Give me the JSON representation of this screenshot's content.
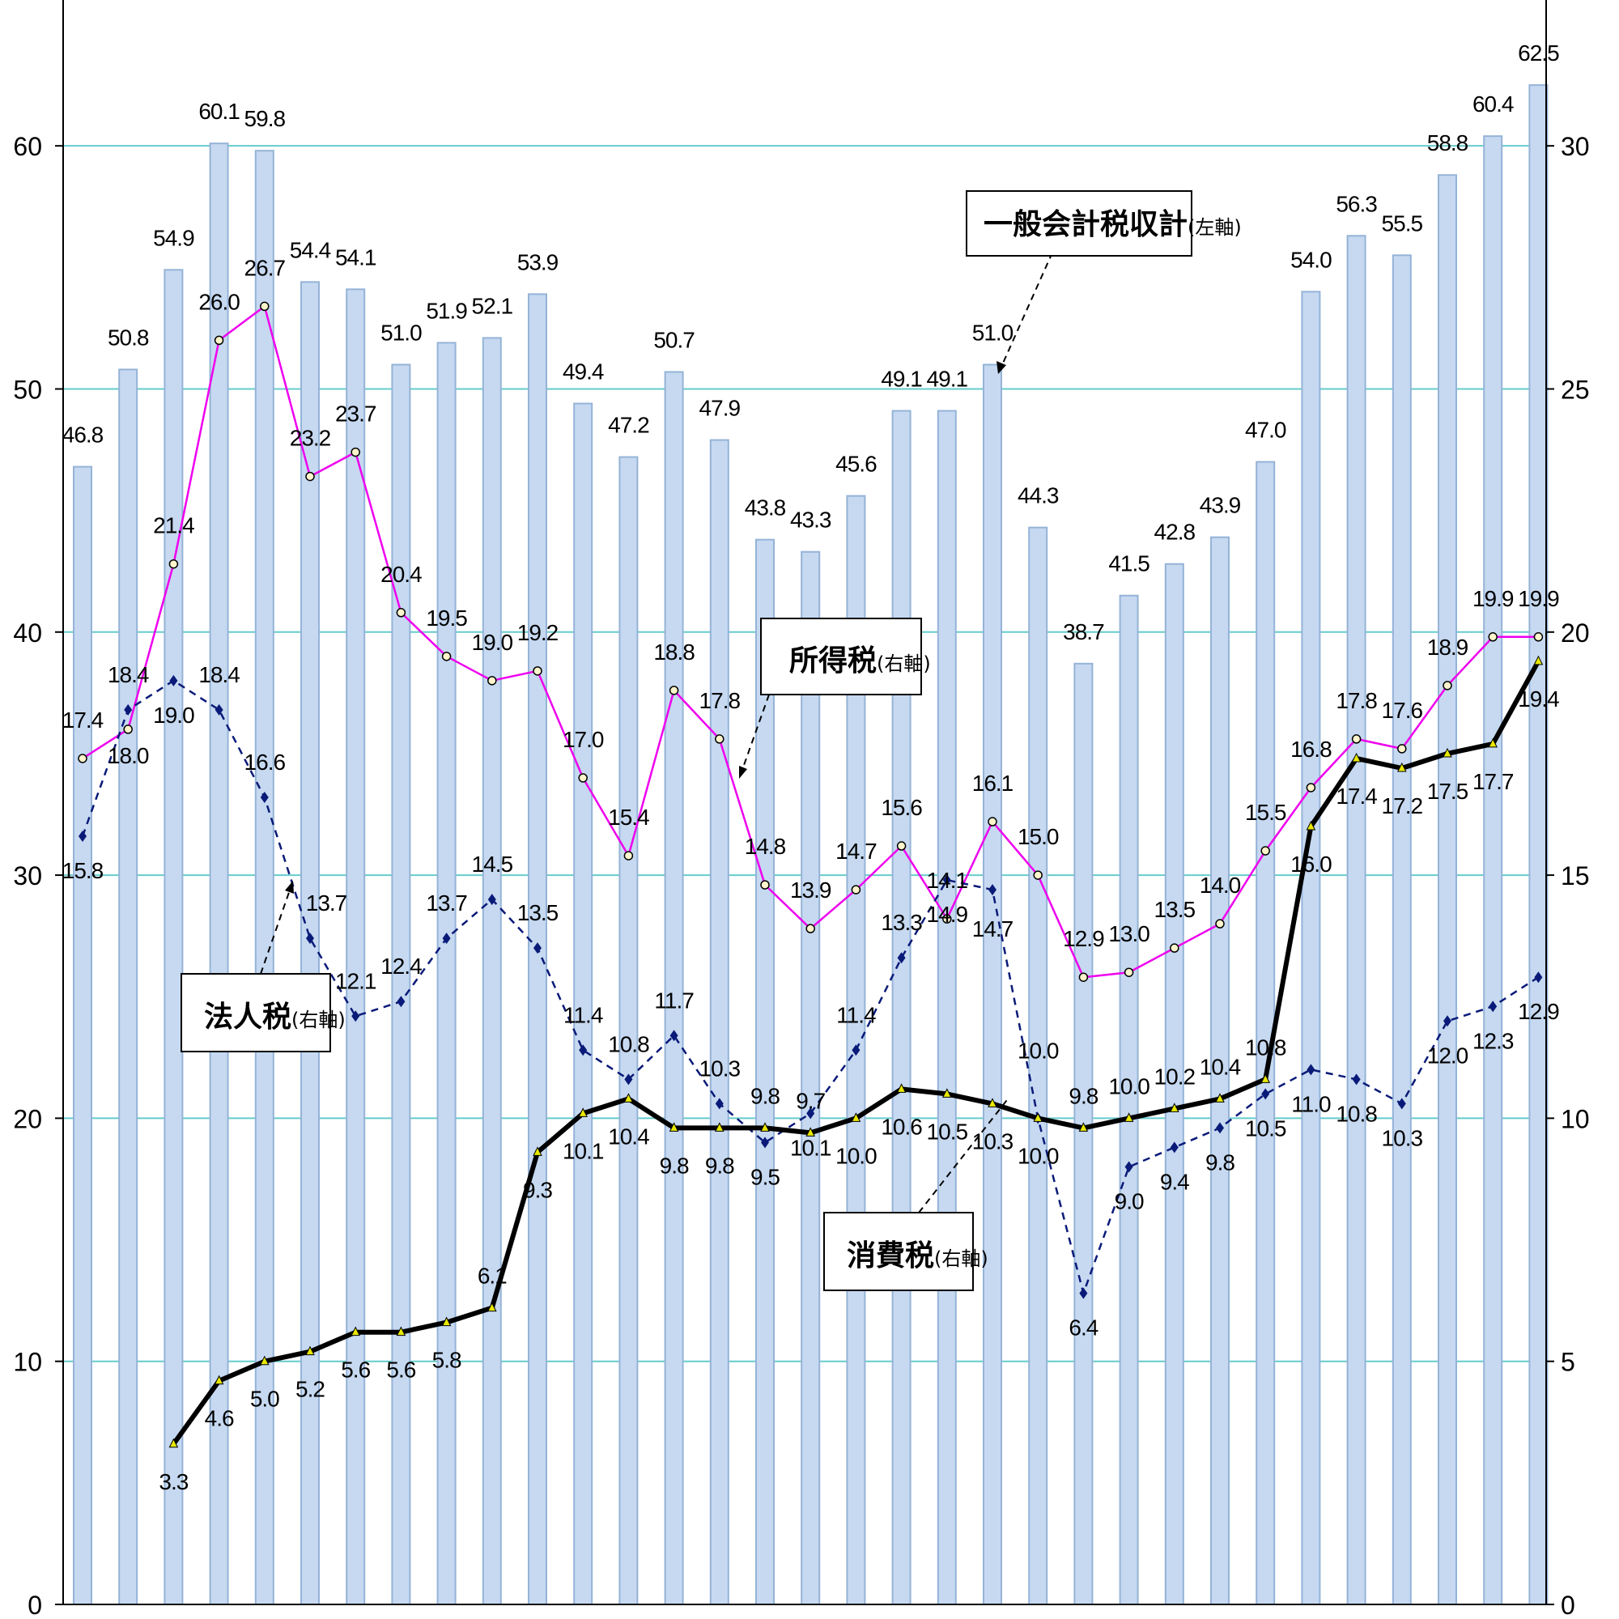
{
  "chart_data": {
    "type": "bar",
    "title": "",
    "xlabel": "",
    "ylabel": "",
    "y_left": {
      "range": [
        0,
        66
      ],
      "ticks": [
        "0",
        "10",
        "20",
        "30",
        "40",
        "50",
        "60"
      ]
    },
    "y_right": {
      "range": [
        0,
        33
      ],
      "ticks": [
        "0",
        "5",
        "10",
        "15",
        "20",
        "25",
        "30"
      ]
    },
    "gridlines": true,
    "colors": {
      "bar_fill": "#c6d9f1",
      "bar_stroke": "#95b3d7",
      "grid": "#66cccc",
      "income_tax": "#ee00ee",
      "corporate_tax": "#0a1a78",
      "consumption_tax": "#000000"
    },
    "series": [
      {
        "name": "一般会計税収計",
        "axis": "left",
        "kind": "bar",
        "values": [
          46.8,
          50.8,
          54.9,
          60.1,
          59.8,
          54.4,
          54.1,
          51.0,
          51.9,
          52.1,
          53.9,
          49.4,
          47.2,
          50.7,
          47.9,
          43.8,
          43.3,
          45.6,
          49.1,
          49.1,
          51.0,
          44.3,
          38.7,
          41.5,
          42.8,
          43.9,
          47.0,
          54.0,
          56.3,
          55.5,
          58.8,
          60.4,
          62.5
        ],
        "labels": [
          "46.8",
          "50.8",
          "54.9",
          "60.1",
          "59.8",
          "54.4",
          "54.1",
          "51.0",
          "51.9",
          "52.1",
          "53.9",
          "49.4",
          "47.2",
          "50.7",
          "47.9",
          "43.8",
          "43.3",
          "45.6",
          "49.1",
          "49.1",
          "51.0",
          "44.3",
          "38.7",
          "41.5",
          "42.8",
          "43.9",
          "47.0",
          "54.0",
          "56.3",
          "55.5",
          "58.8",
          "60.4",
          "62.5"
        ]
      },
      {
        "name": "所得税",
        "axis": "right",
        "kind": "line",
        "values": [
          17.4,
          18.0,
          21.4,
          26.0,
          26.7,
          23.2,
          23.7,
          20.4,
          19.5,
          19.0,
          19.2,
          17.0,
          15.4,
          18.8,
          17.8,
          14.8,
          13.9,
          14.7,
          15.6,
          14.1,
          16.1,
          15.0,
          12.9,
          13.0,
          13.5,
          14.0,
          15.5,
          16.8,
          17.8,
          17.6,
          18.9,
          19.9,
          19.9
        ],
        "labels": [
          "17.4",
          "18.0",
          "21.4",
          "26.0",
          "26.7",
          "23.2",
          "23.7",
          "20.4",
          "19.5",
          "19.0",
          "19.2",
          "17.0",
          "15.4",
          "18.8",
          "17.8",
          "14.8",
          "13.9",
          "14.7",
          "15.6",
          "14.1",
          "16.1",
          "15.0",
          "12.9",
          "13.0",
          "13.5",
          "14.0",
          "15.5",
          "16.8",
          "17.8",
          "17.6",
          "18.9",
          "19.9",
          "19.9"
        ]
      },
      {
        "name": "法人税",
        "axis": "right",
        "kind": "line",
        "values": [
          15.8,
          18.4,
          19.0,
          18.4,
          16.6,
          13.7,
          12.1,
          12.4,
          13.7,
          14.5,
          13.5,
          11.4,
          10.8,
          11.7,
          10.3,
          9.5,
          10.1,
          11.4,
          13.3,
          14.9,
          14.7,
          10.0,
          6.4,
          9.0,
          9.4,
          9.8,
          10.5,
          11.0,
          10.8,
          10.3,
          12.0,
          12.3,
          12.9
        ],
        "labels": [
          "15.8",
          "18.4",
          "19.0",
          "18.4",
          "16.6",
          "13.7",
          "12.1",
          "12.4",
          "13.7",
          "14.5",
          "13.5",
          "11.4",
          "10.8",
          "11.7",
          "10.3",
          "9.5",
          "10.1",
          "11.4",
          "13.3",
          "14.9",
          "14.7",
          "10.0",
          "6.4",
          "9.0",
          "9.4",
          "9.8",
          "10.5",
          "11.0",
          "10.8",
          "10.3",
          "12.0",
          "12.3",
          "12.9"
        ]
      },
      {
        "name": "消費税",
        "axis": "right",
        "kind": "line",
        "values": [
          null,
          null,
          3.3,
          4.6,
          5.0,
          5.2,
          5.6,
          5.6,
          5.8,
          6.1,
          9.3,
          10.1,
          10.4,
          9.8,
          9.8,
          9.8,
          9.7,
          10.0,
          10.6,
          10.5,
          10.3,
          10.0,
          9.8,
          10.0,
          10.2,
          10.4,
          10.8,
          16.0,
          17.4,
          17.2,
          17.5,
          17.7,
          19.4
        ],
        "labels": [
          "",
          "",
          "3.3",
          "4.6",
          "5.0",
          "5.2",
          "5.6",
          "5.6",
          "5.8",
          "6.1",
          "9.3",
          "10.1",
          "10.4",
          "9.8",
          "9.8",
          "9.8",
          "9.7",
          "10.0",
          "10.6",
          "10.5",
          "10.3",
          "10.0",
          "9.8",
          "10.0",
          "10.2",
          "10.4",
          "10.8",
          "16.0",
          "17.4",
          "17.2",
          "17.5",
          "17.7",
          "19.4"
        ]
      }
    ],
    "callouts": {
      "total": {
        "main": "一般会計税収計",
        "sub": "(左軸)"
      },
      "income": {
        "main": "所得税",
        "sub": "(右軸)"
      },
      "corporate": {
        "main": "法人税",
        "sub": "(右軸)"
      },
      "consumption": {
        "main": "消費税",
        "sub": "(右軸)"
      }
    }
  }
}
